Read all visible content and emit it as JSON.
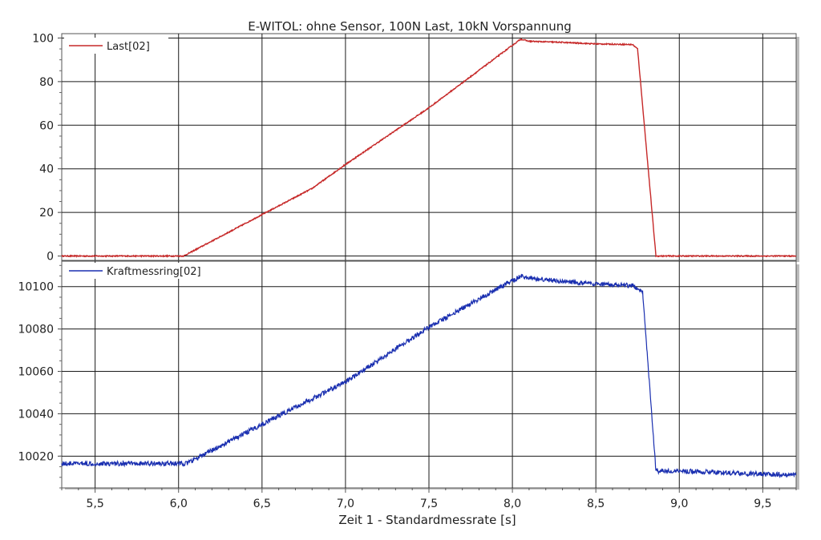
{
  "chart_data": [
    {
      "type": "line",
      "title": "E-WITOL: ohne Sensor, 100N Last, 10kN Vorspannung",
      "xlim": [
        5.3,
        9.7
      ],
      "ylim": [
        -2,
        102
      ],
      "grid": true,
      "legend_position": "top-left",
      "y_ticks": [
        0,
        20,
        40,
        60,
        80,
        100
      ],
      "color": "#c62828",
      "series": [
        {
          "name": "Last[02]",
          "x": [
            5.3,
            6.03,
            6.5,
            6.8,
            7.0,
            7.5,
            8.05,
            8.1,
            8.3,
            8.5,
            8.72,
            8.75,
            8.86,
            9.0,
            9.7
          ],
          "y": [
            0,
            0,
            19,
            31,
            42,
            68,
            99.5,
            98.5,
            98,
            97.3,
            97,
            95,
            0,
            0,
            0
          ]
        }
      ]
    },
    {
      "type": "line",
      "xlabel": "Zeit  1 - Standardmessrate  [s]",
      "xlim": [
        5.3,
        9.7
      ],
      "ylim": [
        10005,
        10112
      ],
      "grid": true,
      "legend_position": "top-left",
      "y_ticks": [
        10020,
        10040,
        10060,
        10080,
        10100
      ],
      "x_ticks": [
        "5,5",
        "6,0",
        "6,5",
        "7,0",
        "7,5",
        "8,0",
        "8,5",
        "9,0",
        "9,5"
      ],
      "x_tick_values": [
        5.5,
        6.0,
        6.5,
        7.0,
        7.5,
        8.0,
        8.5,
        9.0,
        9.5
      ],
      "color": "#1a2fb0",
      "series": [
        {
          "name": "Kraftmessring[02]",
          "x": [
            5.3,
            6.05,
            6.5,
            7.0,
            7.5,
            8.05,
            8.1,
            8.5,
            8.72,
            8.78,
            8.86,
            9.0,
            9.5,
            9.7
          ],
          "y": [
            10016.5,
            10016.5,
            10035,
            10055,
            10081,
            10105,
            10104,
            10101,
            10100.5,
            10098,
            10013,
            10013,
            10011.5,
            10011
          ]
        }
      ]
    }
  ]
}
